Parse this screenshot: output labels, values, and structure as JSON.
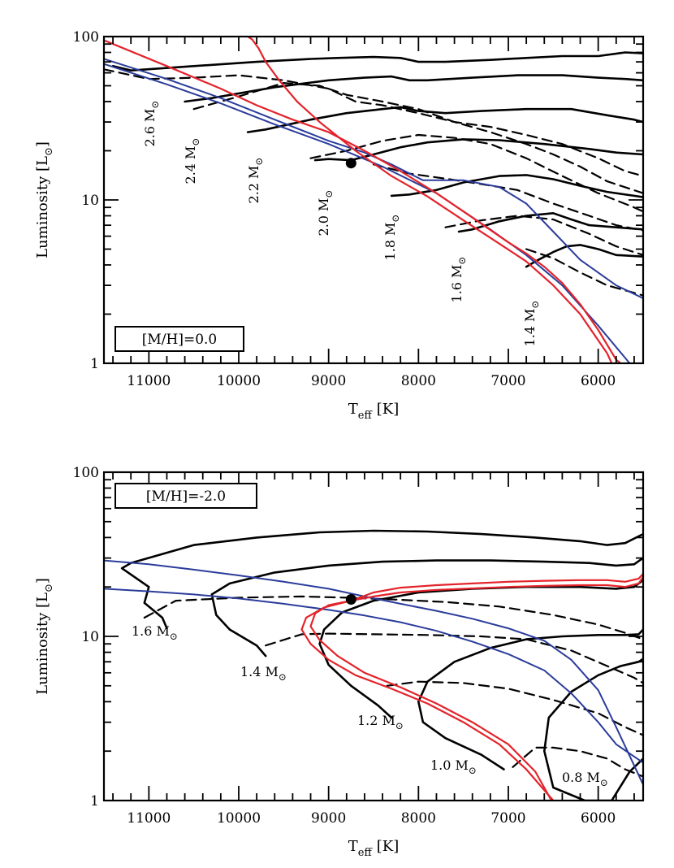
{
  "chart_data": [
    {
      "type": "line",
      "panel": "top",
      "xlabel_main": "T",
      "xlabel_sub": "eff",
      "xlabel_unit": "[K]",
      "ylabel_main": "Luminosity [L",
      "ylabel_sub": "⊙",
      "ylabel_close": "]",
      "xlim": [
        11500,
        5500
      ],
      "ylim": [
        1,
        100
      ],
      "yscale": "log",
      "x_ticks": [
        11000,
        10000,
        9000,
        8000,
        7000,
        6000
      ],
      "y_ticks": [
        1,
        10,
        100
      ],
      "metallicity_label": "[M/H]=0.0",
      "marker_point": {
        "x": 8750,
        "y": 16.8
      },
      "red_lines": [
        {
          "x": [
            11500,
            10800,
            10200,
            9800,
            9400,
            9000,
            8600,
            8200,
            7800,
            7400,
            7000,
            6800,
            6600,
            6400,
            6200,
            6000,
            5800,
            5750
          ],
          "y": [
            95,
            66,
            48,
            38,
            31,
            26,
            20,
            15,
            11,
            7.8,
            5.5,
            4.7,
            3.9,
            3.1,
            2.3,
            1.6,
            1.05,
            1.0
          ]
        },
        {
          "x": [
            9900,
            9850,
            9780,
            9700,
            9550,
            9350,
            9100,
            8700,
            8300,
            7900,
            7500,
            7100,
            6800,
            6500,
            6200,
            5900,
            5850
          ],
          "y": [
            100,
            96,
            85,
            70,
            54,
            40,
            30,
            20,
            14,
            10.5,
            7.5,
            5.4,
            4.2,
            3.0,
            2.0,
            1.15,
            1.0
          ]
        }
      ],
      "blue_lines": [
        {
          "x": [
            11500,
            10800,
            10200,
            9600,
            9000,
            8400,
            7800,
            7200,
            6800,
            6400,
            6000,
            5650
          ],
          "y": [
            68,
            51,
            39,
            29,
            22,
            16,
            11,
            6.6,
            4.6,
            3.0,
            1.7,
            1.0
          ]
        },
        {
          "x": [
            11500,
            10800,
            10200,
            9600,
            9000,
            8600,
            8300,
            7950,
            7500,
            7100,
            6800,
            6500,
            6200,
            5800,
            5500
          ],
          "y": [
            73,
            55,
            42,
            31,
            23,
            19.5,
            16.5,
            13.2,
            13.2,
            12,
            9.5,
            6.4,
            4.3,
            3.0,
            2.5
          ]
        }
      ],
      "black_tracks": [
        {
          "mass": "2.6",
          "x": [
            11400,
            11200,
            10500,
            9800,
            9200,
            8900,
            8500,
            8200,
            8000,
            7700,
            7200,
            6800,
            6400,
            6000,
            5700,
            5500
          ],
          "y": [
            66,
            62,
            66,
            70,
            73,
            74,
            75,
            74,
            70,
            70,
            72,
            74,
            76,
            76,
            80,
            79
          ]
        },
        {
          "mass": "2.4",
          "x": [
            10600,
            10300,
            9600,
            9000,
            8600,
            8300,
            8100,
            7900,
            7400,
            6900,
            6400,
            6000,
            5700,
            5500
          ],
          "y": [
            40,
            42,
            49,
            54,
            56,
            57,
            54,
            54,
            56,
            58,
            58,
            56,
            55,
            54
          ]
        },
        {
          "mass": "2.2",
          "x": [
            9900,
            9700,
            9200,
            8800,
            8400,
            8200,
            8000,
            7700,
            7300,
            6800,
            6300,
            5900,
            5600,
            5500
          ],
          "y": [
            26,
            27,
            31,
            34,
            36,
            37,
            35,
            34,
            35,
            36,
            36,
            33,
            31,
            30
          ]
        },
        {
          "mass": "2.0",
          "x": [
            9150,
            9000,
            8750,
            8500,
            8200,
            7900,
            7500,
            7100,
            6600,
            6100,
            5800,
            5500
          ],
          "y": [
            17.5,
            17.8,
            17.5,
            19,
            21,
            22.5,
            23.5,
            23.2,
            22,
            20.5,
            19.5,
            19
          ]
        },
        {
          "mass": "1.8",
          "x": [
            8300,
            8100,
            7800,
            7500,
            7100,
            6800,
            6500,
            6200,
            5900,
            5600,
            5500
          ],
          "y": [
            10.6,
            10.8,
            11.5,
            12.8,
            14,
            14.2,
            13.4,
            12.2,
            11.2,
            10.6,
            10.4
          ]
        },
        {
          "mass": "1.6",
          "x": [
            7550,
            7400,
            7100,
            6800,
            6500,
            6300,
            6100,
            5800,
            5500
          ],
          "y": [
            6.4,
            6.6,
            7.4,
            8.0,
            8.3,
            7.6,
            7.0,
            6.8,
            6.6
          ]
        },
        {
          "mass": "1.4",
          "x": [
            6800,
            6700,
            6500,
            6350,
            6200,
            6000,
            5800,
            5500
          ],
          "y": [
            3.9,
            4.2,
            4.8,
            5.2,
            5.3,
            5.0,
            4.6,
            4.5
          ]
        }
      ],
      "dashed_lines": [
        {
          "x": [
            11500,
            11000,
            10500,
            10000,
            9500,
            9000,
            8700,
            8400,
            8000,
            7600,
            7200,
            6800,
            6400,
            6000,
            5700,
            5500
          ],
          "y": [
            63,
            55,
            56,
            58,
            54,
            48,
            40,
            38,
            34,
            30,
            28,
            25,
            22,
            18,
            15,
            14
          ]
        },
        {
          "x": [
            10500,
            10000,
            9500,
            9100,
            8800,
            8400,
            8000,
            7600,
            7200,
            6800,
            6500,
            6200,
            5900,
            5500
          ],
          "y": [
            36,
            43,
            52,
            50,
            44,
            40,
            36,
            30,
            26,
            22,
            19,
            16,
            13,
            11
          ]
        },
        {
          "x": [
            9200,
            8800,
            8400,
            8000,
            7600,
            7200,
            6800,
            6400,
            6000,
            5600,
            5500
          ],
          "y": [
            18,
            20,
            23,
            25,
            24,
            22,
            18,
            14,
            11,
            9,
            8.5
          ]
        },
        {
          "x": [
            8500,
            8100,
            7700,
            7300,
            6900,
            6500,
            6100,
            5800,
            5500
          ],
          "y": [
            16.5,
            14.5,
            13.5,
            12.5,
            11.5,
            9.5,
            8,
            7,
            6.5
          ]
        },
        {
          "x": [
            7700,
            7300,
            6900,
            6500,
            6100,
            5800,
            5500
          ],
          "y": [
            6.8,
            7.5,
            8.0,
            7.6,
            6.2,
            5.2,
            4.6
          ]
        },
        {
          "x": [
            6800,
            6500,
            6200,
            5900,
            5600,
            5500
          ],
          "y": [
            5.0,
            4.4,
            3.6,
            3.0,
            2.7,
            2.6
          ]
        }
      ]
    },
    {
      "type": "line",
      "panel": "bottom",
      "xlabel_main": "T",
      "xlabel_sub": "eff",
      "xlabel_unit": "[K]",
      "ylabel_main": "Luminosity [L",
      "ylabel_sub": "⊙",
      "ylabel_close": "]",
      "xlim": [
        11500,
        5500
      ],
      "ylim": [
        1,
        100
      ],
      "yscale": "log",
      "x_ticks": [
        11000,
        10000,
        9000,
        8000,
        7000,
        6000
      ],
      "y_ticks": [
        1,
        10,
        100
      ],
      "metallicity_label": "[M/H]=-2.0",
      "marker_point": {
        "x": 8750,
        "y": 16.8
      },
      "red_lines": [
        {
          "x": [
            8750,
            8500,
            8200,
            7800,
            7400,
            7000,
            6600,
            6200,
            5900,
            5700,
            5550,
            5500
          ],
          "y": [
            16.5,
            18.5,
            19.8,
            20.5,
            21.0,
            21.5,
            21.8,
            22.0,
            22.0,
            21.5,
            22.5,
            24
          ]
        },
        {
          "x": [
            8750,
            8500,
            8200,
            7800,
            7400,
            7000,
            6600,
            6200,
            5900,
            5700,
            5550,
            5500
          ],
          "y": [
            16.5,
            17.5,
            18.5,
            19.2,
            19.6,
            20.0,
            20.3,
            20.5,
            20.5,
            20.0,
            21.0,
            23
          ]
        },
        {
          "x": [
            8750,
            9050,
            9250,
            9300,
            9200,
            9000,
            8700,
            8300,
            7900,
            7500,
            7100,
            6800,
            6500
          ],
          "y": [
            16.5,
            15,
            13,
            11,
            9,
            7.2,
            5.8,
            4.8,
            3.9,
            3.0,
            2.2,
            1.55,
            1.0
          ]
        },
        {
          "x": [
            8750,
            9000,
            9150,
            9200,
            9100,
            8900,
            8600,
            8200,
            7800,
            7400,
            7000,
            6700,
            6520
          ],
          "y": [
            16.5,
            15.5,
            13.8,
            11.5,
            9.5,
            7.6,
            6.0,
            4.9,
            3.9,
            3.0,
            2.2,
            1.5,
            1.0
          ]
        }
      ],
      "blue_lines": [
        {
          "x": [
            11500,
            11000,
            10500,
            10000,
            9500,
            9000,
            8600,
            8200,
            7800,
            7400,
            7000,
            6600,
            6300,
            6000,
            5800,
            5500
          ],
          "y": [
            29,
            27.5,
            25.5,
            23.5,
            21.5,
            19.5,
            17.5,
            15.8,
            14.3,
            12.8,
            11.2,
            9.4,
            7.2,
            4.7,
            2.8,
            1.25
          ]
        },
        {
          "x": [
            11500,
            11000,
            10500,
            10000,
            9500,
            9000,
            8600,
            8200,
            7800,
            7400,
            7000,
            6600,
            6300,
            6000,
            5800,
            5500
          ],
          "y": [
            19.5,
            18.8,
            18.0,
            17.0,
            15.8,
            14.5,
            13.4,
            12.2,
            10.8,
            9.3,
            7.8,
            6.2,
            4.5,
            3.0,
            2.2,
            1.7
          ]
        }
      ],
      "black_tracks": [
        {
          "mass": "1.6",
          "x": [
            10800,
            10850,
            11050,
            11000,
            11300,
            11200,
            10500,
            9800,
            9100,
            8500,
            7900,
            7300,
            6700,
            6200,
            5900,
            5700,
            5500
          ],
          "y": [
            11.2,
            13,
            16,
            20,
            26,
            28,
            36,
            40,
            43,
            44,
            43.5,
            42,
            40,
            38,
            36,
            37,
            42
          ]
        },
        {
          "mass": "1.4",
          "x": [
            9700,
            9800,
            10100,
            10250,
            10300,
            10100,
            9600,
            9000,
            8400,
            7800,
            7200,
            6600,
            6100,
            5800,
            5600,
            5500
          ],
          "y": [
            7.6,
            8.8,
            11,
            13.5,
            18,
            21,
            24.5,
            27,
            28.5,
            29,
            29,
            28.5,
            28,
            27,
            27.5,
            30
          ]
        },
        {
          "mass": "1.2",
          "x": [
            8300,
            8450,
            8750,
            9000,
            9100,
            9050,
            8850,
            8500,
            8000,
            7400,
            6800,
            6200,
            5800,
            5600,
            5500
          ],
          "y": [
            3.2,
            3.8,
            5,
            6.7,
            9,
            11,
            14,
            16.5,
            18.5,
            19.5,
            20,
            20,
            19.5,
            20,
            22
          ]
        },
        {
          "mass": "1.0",
          "x": [
            7050,
            7300,
            7700,
            7950,
            8000,
            7900,
            7600,
            7200,
            6800,
            6400,
            6000,
            5700,
            5550,
            5500
          ],
          "y": [
            1.55,
            1.9,
            2.4,
            3.0,
            4.0,
            5.3,
            7.0,
            8.5,
            9.6,
            10.0,
            10.2,
            10.2,
            10.3,
            11
          ]
        },
        {
          "mass": "0.8",
          "x": [
            5500,
            5650,
            5850,
            6150,
            6500,
            6600,
            6550,
            6300,
            6000,
            5750,
            5550,
            5500
          ],
          "y": [
            1.8,
            1.5,
            1.0,
            1.0,
            1.2,
            2.0,
            3.2,
            4.6,
            5.8,
            6.6,
            7.0,
            7.3
          ]
        }
      ],
      "dashed_lines": [
        {
          "x": [
            11050,
            10700,
            10000,
            9300,
            8800,
            8300,
            7700,
            7100,
            6500,
            6000,
            5700,
            5500
          ],
          "y": [
            13,
            16.5,
            17.2,
            17.5,
            17.2,
            16.8,
            16.2,
            15.2,
            13.5,
            11.8,
            10.5,
            9.6
          ]
        },
        {
          "x": [
            9700,
            9300,
            9000,
            8500,
            7900,
            7300,
            6800,
            6300,
            5900,
            5600,
            5500
          ],
          "y": [
            8.8,
            10.3,
            10.4,
            10.3,
            10.2,
            10.0,
            9.6,
            8.2,
            6.6,
            5.6,
            5.2
          ]
        },
        {
          "x": [
            8350,
            8000,
            7500,
            7000,
            6500,
            6000,
            5700,
            5500
          ],
          "y": [
            5.0,
            5.3,
            5.2,
            4.8,
            4.1,
            3.4,
            2.8,
            2.5
          ]
        },
        {
          "x": [
            6950,
            6700,
            6500,
            6200,
            5900,
            5700,
            5500
          ],
          "y": [
            1.6,
            2.1,
            2.1,
            2.0,
            1.8,
            1.55,
            1.4
          ]
        }
      ]
    }
  ],
  "labels": {
    "top_masses": [
      "2.6 M",
      "2.4 M",
      "2.2 M",
      "2.0 M",
      "1.8 M",
      "1.6 M",
      "1.4 M"
    ],
    "bottom_masses": [
      "1.6 M",
      "1.4 M",
      "1.2 M",
      "1.0 M",
      "0.8 M"
    ],
    "sun": "⊙"
  }
}
